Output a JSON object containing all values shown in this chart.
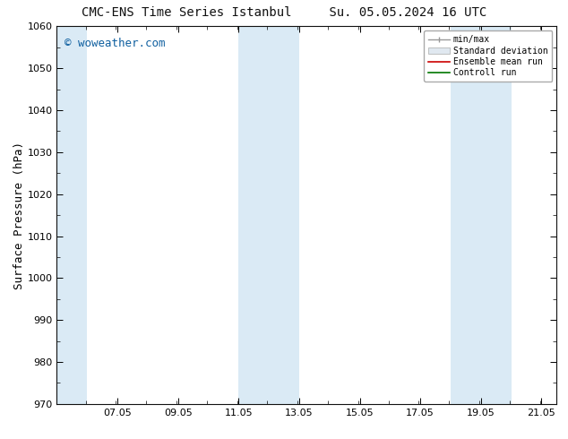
{
  "title_left": "CMC-ENS Time Series Istanbul",
  "title_right": "Su. 05.05.2024 16 UTC",
  "ylabel": "Surface Pressure (hPa)",
  "ylim": [
    970,
    1060
  ],
  "yticks": [
    970,
    980,
    990,
    1000,
    1010,
    1020,
    1030,
    1040,
    1050,
    1060
  ],
  "xlim_start": 5.05,
  "xlim_end": 21.55,
  "xtick_positions": [
    7.05,
    9.05,
    11.05,
    13.05,
    15.05,
    17.05,
    19.05,
    21.05
  ],
  "xtick_labels": [
    "07.05",
    "09.05",
    "11.05",
    "13.05",
    "15.05",
    "17.05",
    "19.05",
    "21.05"
  ],
  "shade_bands": [
    {
      "x_start": 5.05,
      "x_end": 6.05
    },
    {
      "x_start": 11.05,
      "x_end": 13.05
    },
    {
      "x_start": 18.05,
      "x_end": 20.05
    }
  ],
  "shade_color": "#daeaf5",
  "watermark": "© woweather.com",
  "watermark_color": "#1060a0",
  "watermark_fontsize": 9,
  "legend_labels": [
    "min/max",
    "Standard deviation",
    "Ensemble mean run",
    "Controll run"
  ],
  "legend_colors_line": [
    "#999999",
    "#cccccc",
    "#cc0000",
    "#007700"
  ],
  "title_fontsize": 10,
  "tick_label_fontsize": 8,
  "ylabel_fontsize": 9,
  "bg_color": "#ffffff",
  "plot_bg_color": "#ffffff"
}
